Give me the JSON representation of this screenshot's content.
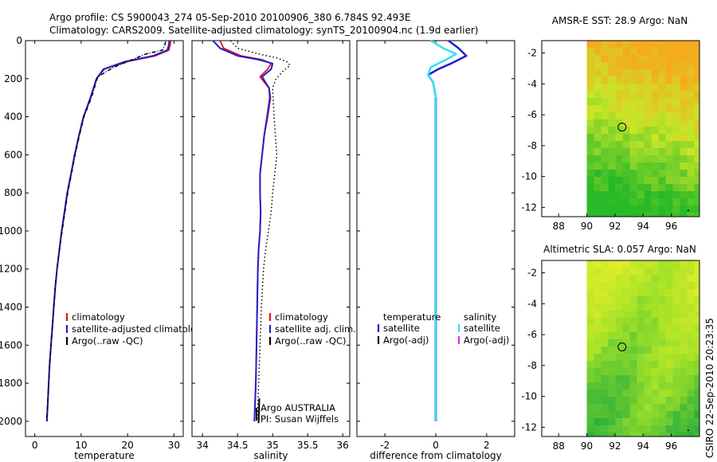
{
  "title": {
    "line1": "Argo profile: CS 5900043_274 05-Sep-2010 20100906_380 6.784S 92.493E",
    "line2": "Climatology: CARS2009. Satellite-adjusted climatology: synTS_20100904.nc (1.9d earlier)"
  },
  "colors": {
    "clim": "#e0141e",
    "sat": "#1f1fcf",
    "argo": "#000000",
    "sat_diff": "#33e0f0",
    "argo_adj_sal": "#e030e0"
  },
  "chart_data": [
    {
      "name": "temperature-panel",
      "type": "line",
      "xlabel": "temperature",
      "ylabel": "",
      "xlim": [
        -2,
        32
      ],
      "ylim": [
        0,
        2080
      ],
      "xticks": [
        0,
        10,
        20,
        30
      ],
      "yticks": [
        0,
        200,
        400,
        600,
        800,
        1000,
        1200,
        1400,
        1600,
        1800,
        2000
      ],
      "legend": [
        "climatology",
        "satellite-adjusted climatology",
        "Argo(..raw -QC)"
      ],
      "series": [
        {
          "name": "climatology",
          "x": [
            29.3,
            29.2,
            28.9,
            26,
            20,
            15,
            13.3,
            12,
            10.5,
            9.5,
            8.6,
            7.8,
            7,
            6.4,
            5.8,
            5.3,
            4.8,
            4.4,
            4.1,
            3.8,
            3.5,
            3.2,
            3.0,
            2.8,
            2.6
          ],
          "y": [
            0,
            20,
            50,
            80,
            110,
            150,
            200,
            300,
            400,
            500,
            600,
            700,
            800,
            900,
            1000,
            1100,
            1200,
            1300,
            1400,
            1500,
            1600,
            1700,
            1800,
            1900,
            2000
          ]
        },
        {
          "name": "satellite-adjusted climatology",
          "x": [
            29.0,
            28.9,
            28.6,
            25.5,
            19.5,
            14.8,
            13.3,
            12,
            10.5,
            9.5,
            8.6,
            7.8,
            7,
            6.4,
            5.8,
            5.3,
            4.8,
            4.4,
            4.1,
            3.8,
            3.5,
            3.2,
            3.0,
            2.8,
            2.6
          ],
          "y": [
            0,
            20,
            50,
            80,
            110,
            150,
            200,
            300,
            400,
            500,
            600,
            700,
            800,
            900,
            1000,
            1100,
            1200,
            1300,
            1400,
            1500,
            1600,
            1700,
            1800,
            1900,
            2000
          ]
        },
        {
          "name": "Argo(..raw -QC)",
          "x": [
            28.2,
            28.0,
            27.5,
            24,
            21,
            17,
            13.6,
            12.2,
            10.6,
            9.6,
            8.7,
            7.9,
            7.1,
            6.5,
            5.9,
            5.3,
            4.8,
            4.4,
            4.1,
            3.8,
            3.5,
            3.2,
            3.0,
            2.8,
            2.6
          ],
          "y": [
            5,
            25,
            50,
            70,
            100,
            140,
            190,
            300,
            400,
            500,
            600,
            700,
            800,
            900,
            1000,
            1100,
            1200,
            1300,
            1400,
            1500,
            1600,
            1700,
            1800,
            1900,
            2000
          ]
        }
      ]
    },
    {
      "name": "salinity-panel",
      "type": "line",
      "xlabel": "salinity",
      "xlim": [
        33.85,
        36.1
      ],
      "ylim": [
        0,
        2080
      ],
      "xticks": [
        34,
        34.5,
        35,
        35.5,
        36
      ],
      "legend": [
        "climatology",
        "satellite adj. clim.",
        "Argo(..raw -QC)"
      ],
      "annotation": [
        "Argo AUSTRALIA",
        "PI: Susan Wijffels"
      ],
      "series": [
        {
          "name": "climatology",
          "x": [
            34.25,
            34.3,
            34.55,
            34.85,
            34.98,
            34.93,
            34.82,
            34.95,
            34.97,
            34.93,
            34.88,
            34.85,
            34.82,
            34.82,
            34.83,
            34.82,
            34.8,
            34.79,
            34.78,
            34.77,
            34.76,
            34.75,
            34.74
          ],
          "y": [
            0,
            40,
            80,
            100,
            120,
            150,
            190,
            250,
            300,
            400,
            500,
            600,
            700,
            800,
            900,
            1000,
            1100,
            1200,
            1400,
            1600,
            1800,
            1900,
            2000
          ]
        },
        {
          "name": "satellite adj. clim.",
          "x": [
            34.15,
            34.25,
            34.5,
            34.8,
            35.0,
            34.98,
            34.85,
            34.95,
            34.96,
            34.92,
            34.88,
            34.85,
            34.82,
            34.82,
            34.83,
            34.82,
            34.8,
            34.79,
            34.78,
            34.77,
            34.76,
            34.75,
            34.74
          ],
          "y": [
            0,
            40,
            80,
            100,
            120,
            150,
            190,
            250,
            300,
            400,
            500,
            600,
            700,
            800,
            900,
            1000,
            1100,
            1200,
            1400,
            1600,
            1800,
            1900,
            2000
          ]
        },
        {
          "name": "Argo(..raw -QC)",
          "x": [
            34.4,
            34.5,
            34.8,
            35.05,
            35.2,
            35.25,
            35.15,
            35.05,
            35.0,
            35.02,
            35.04,
            35.06,
            35.03,
            35.0,
            34.98,
            34.94,
            34.9,
            34.87,
            34.84,
            34.82,
            34.8,
            34.79,
            34.78
          ],
          "y": [
            0,
            40,
            70,
            90,
            110,
            130,
            160,
            200,
            250,
            400,
            500,
            600,
            700,
            800,
            900,
            1000,
            1100,
            1200,
            1400,
            1600,
            1800,
            1900,
            2000
          ]
        }
      ]
    },
    {
      "name": "difference-panel",
      "type": "line",
      "xlabel": "difference from climatology",
      "xlim": [
        -3.1,
        3.1
      ],
      "ylim": [
        0,
        2080
      ],
      "xticks": [
        -2,
        0,
        2
      ],
      "legend_headers": [
        "temperature",
        "salinity"
      ],
      "legend_left": [
        "satellite",
        "Argo(-adj)"
      ],
      "legend_right": [
        "satellite",
        "Argo(-adj)"
      ],
      "series": [
        {
          "name": "temperature satellite",
          "x": [
            0.5,
            0.9,
            1.2,
            0.6,
            0.1,
            -0.3,
            -0.1,
            0.0,
            0.0,
            0.0,
            0.0
          ],
          "y": [
            0,
            40,
            80,
            120,
            150,
            180,
            220,
            300,
            500,
            1000,
            2000
          ]
        },
        {
          "name": "salinity satellite",
          "x": [
            -0.2,
            0.3,
            0.8,
            0.4,
            -0.2,
            -0.3,
            -0.1,
            0.0,
            0.0,
            0.0,
            0.0
          ],
          "y": [
            0,
            40,
            70,
            100,
            140,
            180,
            220,
            300,
            500,
            1000,
            2000
          ]
        }
      ]
    },
    {
      "name": "sst-map",
      "type": "heatmap",
      "title": "AMSR-E SST: 28.9 Argo: NaN",
      "xlim": [
        86.8,
        98
      ],
      "ylim": [
        -12.6,
        -1.2
      ],
      "xticks": [
        88,
        90,
        92,
        94,
        96
      ],
      "yticks": [
        -2,
        -4,
        -6,
        -8,
        -10,
        -12
      ],
      "data_x_start": 90,
      "marker": {
        "x": 92.5,
        "y": -6.8
      }
    },
    {
      "name": "sla-map",
      "type": "heatmap",
      "title": "Altimetric SLA: 0.057 Argo: NaN",
      "xlim": [
        86.8,
        98
      ],
      "ylim": [
        -12.6,
        -1.2
      ],
      "xticks": [
        88,
        90,
        92,
        94,
        96
      ],
      "yticks": [
        -2,
        -4,
        -6,
        -8,
        -10,
        -12
      ],
      "data_x_start": 90,
      "marker": {
        "x": 92.5,
        "y": -6.8
      }
    }
  ],
  "footer": {
    "stamp": "CSIRO 22-Sep-2010 20:23:35"
  }
}
